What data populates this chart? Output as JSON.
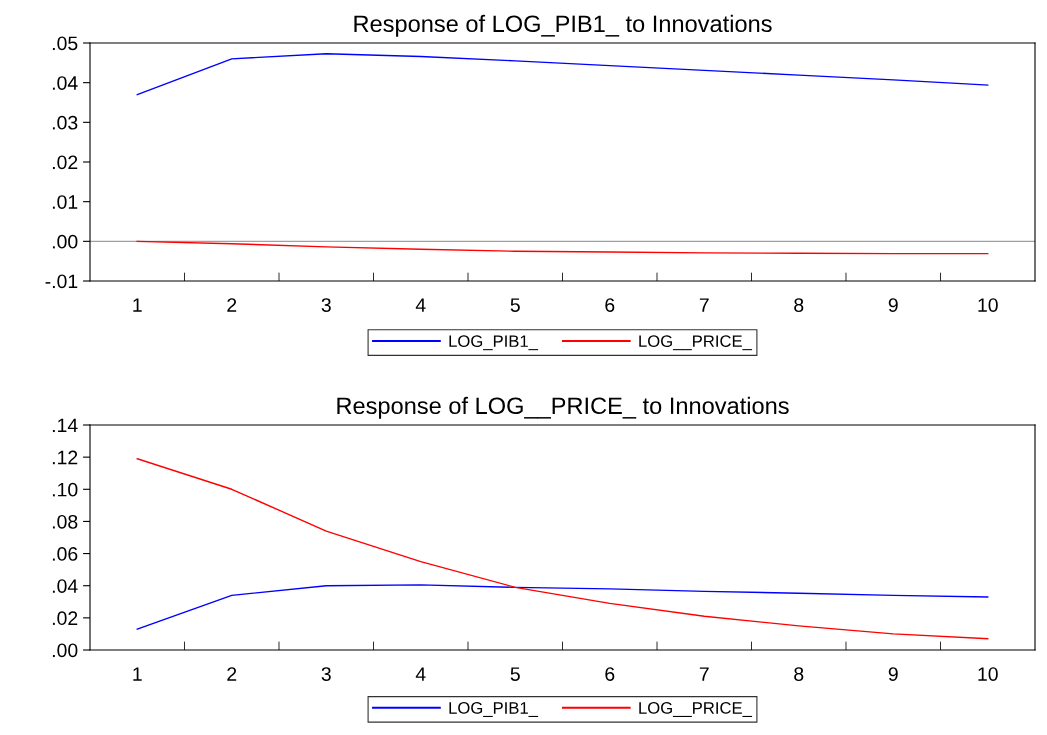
{
  "chart_data": [
    {
      "type": "line",
      "title": "Response of LOG_PIB1_ to Innovations",
      "categories": [
        "1",
        "2",
        "3",
        "4",
        "5",
        "6",
        "7",
        "8",
        "9",
        "10"
      ],
      "series": [
        {
          "name": "LOG_PIB1_",
          "color": "#0000ff",
          "values": [
            0.037,
            0.046,
            0.0473,
            0.0466,
            0.0455,
            0.0443,
            0.0431,
            0.0419,
            0.0407,
            0.0394
          ]
        },
        {
          "name": "LOG__PRICE_",
          "color": "#ff0000",
          "values": [
            0.0,
            -0.0006,
            -0.0014,
            -0.002,
            -0.0025,
            -0.0027,
            -0.0029,
            -0.003,
            -0.0031,
            -0.0031
          ]
        }
      ],
      "ylim": [
        -0.01,
        0.05
      ],
      "yticks": [
        {
          "value": -0.01,
          "label": "-.01"
        },
        {
          "value": 0.0,
          "label": ".00"
        },
        {
          "value": 0.01,
          "label": ".01"
        },
        {
          "value": 0.02,
          "label": ".02"
        },
        {
          "value": 0.03,
          "label": ".03"
        },
        {
          "value": 0.04,
          "label": ".04"
        },
        {
          "value": 0.05,
          "label": ".05"
        }
      ],
      "ref_lines": [
        {
          "axis": "y",
          "value": 0,
          "color": "#a0a0a0"
        }
      ],
      "legend": "bottom",
      "grid": false,
      "marker": "none",
      "line_style": "solid"
    },
    {
      "type": "line",
      "title": "Response of LOG__PRICE_ to Innovations",
      "categories": [
        "1",
        "2",
        "3",
        "4",
        "5",
        "6",
        "7",
        "8",
        "9",
        "10"
      ],
      "series": [
        {
          "name": "LOG_PIB1_",
          "color": "#0000ff",
          "values": [
            0.013,
            0.034,
            0.04,
            0.0405,
            0.039,
            0.038,
            0.0365,
            0.0353,
            0.034,
            0.033
          ]
        },
        {
          "name": "LOG__PRICE_",
          "color": "#ff0000",
          "values": [
            0.119,
            0.1,
            0.074,
            0.055,
            0.039,
            0.029,
            0.021,
            0.015,
            0.01,
            0.007
          ]
        }
      ],
      "ylim": [
        0.0,
        0.14
      ],
      "yticks": [
        {
          "value": 0.0,
          "label": ".00"
        },
        {
          "value": 0.02,
          "label": ".02"
        },
        {
          "value": 0.04,
          "label": ".04"
        },
        {
          "value": 0.06,
          "label": ".06"
        },
        {
          "value": 0.08,
          "label": ".08"
        },
        {
          "value": 0.1,
          "label": ".10"
        },
        {
          "value": 0.12,
          "label": ".12"
        },
        {
          "value": 0.14,
          "label": ".14"
        }
      ],
      "legend": "bottom",
      "grid": false,
      "marker": "none",
      "line_style": "solid"
    }
  ]
}
